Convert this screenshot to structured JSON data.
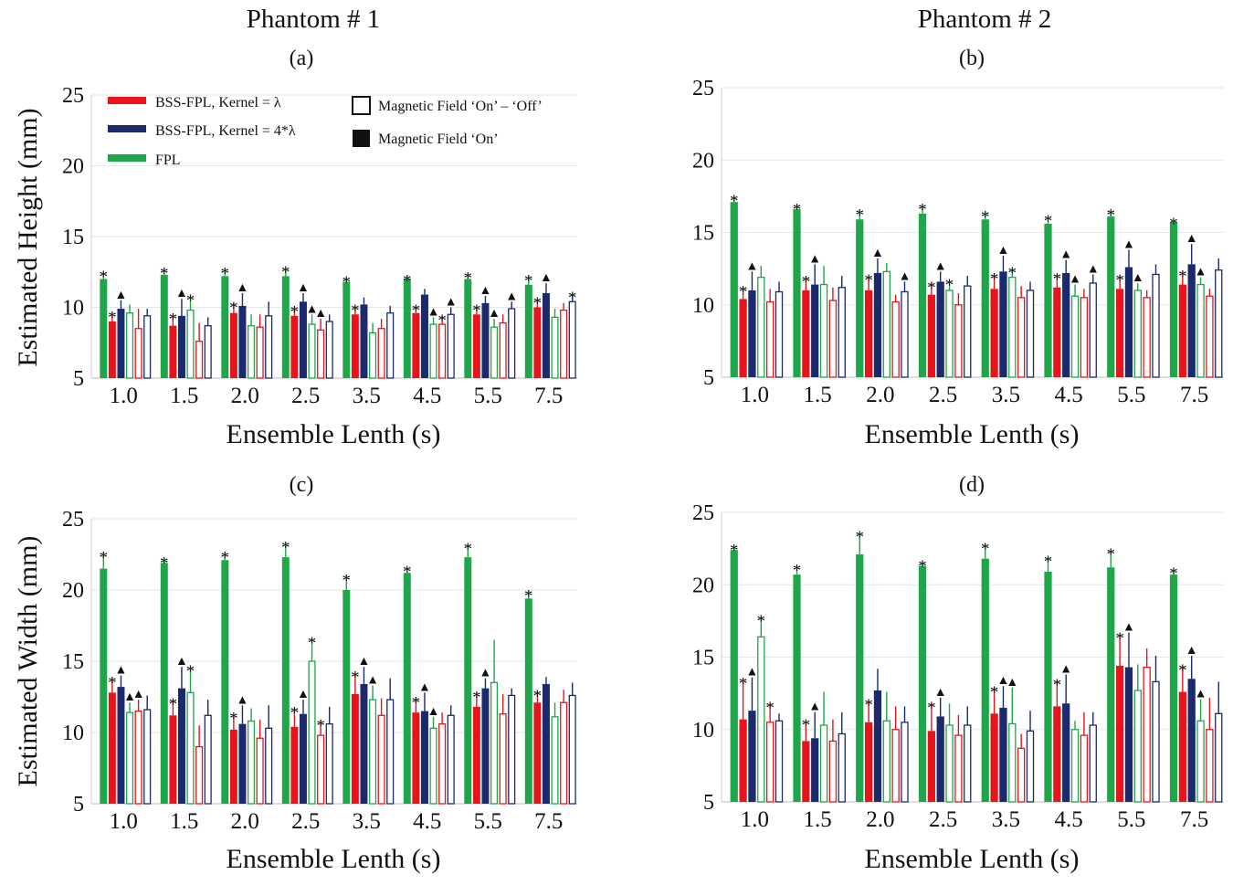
{
  "columns": [
    "Phantom # 1",
    "Phantom # 2"
  ],
  "colors": {
    "BSS-FPL, Kernel = λ": "#e8141c",
    "BSS-FPL, Kernel = 4*λ": "#1a2a6c",
    "FPL": "#1fa64a"
  },
  "legend": {
    "series": [
      "BSS-FPL, Kernel = λ",
      "BSS-FPL, Kernel = 4*λ",
      "FPL"
    ],
    "fields": [
      "Magnetic Field ‘On’ – ‘Off’",
      "Magnetic Field ‘On’"
    ]
  },
  "chart_data": [
    {
      "type": "bar",
      "panel": "(a)",
      "xlabel": "Ensemble Lenth (s)",
      "ylabel": "Estimated Height (mm)",
      "ylim": [
        5,
        25
      ],
      "yticks": [
        5,
        10,
        15,
        20,
        25
      ],
      "categories": [
        "1.0",
        "1.5",
        "2.0",
        "2.5",
        "3.5",
        "4.5",
        "5.5",
        "7.5"
      ],
      "series": [
        {
          "name": "FPL",
          "field": "On",
          "values": [
            12.0,
            12.3,
            12.2,
            12.2,
            11.8,
            12.0,
            12.0,
            11.6
          ],
          "err": [
            0.5,
            0.4,
            0.5,
            0.6,
            0.3,
            0.2,
            0.4,
            0.6
          ]
        },
        {
          "name": "BSS-FPL, Kernel = λ",
          "field": "On",
          "values": [
            9.0,
            8.7,
            9.6,
            9.4,
            9.5,
            9.6,
            9.5,
            10.0
          ],
          "err": [
            0.6,
            0.8,
            0.7,
            0.6,
            0.6,
            0.5,
            0.6,
            0.6
          ]
        },
        {
          "name": "BSS-FPL, Kernel = 4*λ",
          "field": "On",
          "values": [
            9.9,
            9.4,
            10.1,
            10.4,
            10.2,
            10.9,
            10.3,
            11.0
          ],
          "err": [
            0.6,
            1.2,
            0.9,
            0.6,
            0.5,
            0.4,
            0.5,
            0.7
          ]
        },
        {
          "name": "FPL",
          "field": "On – Off",
          "values": [
            9.6,
            9.8,
            8.7,
            8.8,
            8.2,
            8.8,
            8.6,
            9.3
          ],
          "err": [
            0.6,
            1.0,
            0.8,
            0.7,
            0.7,
            0.5,
            0.6,
            0.6
          ]
        },
        {
          "name": "BSS-FPL, Kernel = λ",
          "field": "On – Off",
          "values": [
            8.5,
            7.6,
            8.6,
            8.4,
            8.5,
            8.8,
            8.9,
            9.8
          ],
          "err": [
            1.4,
            1.3,
            0.9,
            0.8,
            0.7,
            0.6,
            0.6,
            0.5
          ]
        },
        {
          "name": "BSS-FPL, Kernel = 4*λ",
          "field": "On – Off",
          "values": [
            9.4,
            8.7,
            9.4,
            9.0,
            9.6,
            9.5,
            9.9,
            10.4
          ],
          "err": [
            0.5,
            0.6,
            1.0,
            0.5,
            0.5,
            0.5,
            0.5,
            0.6
          ]
        }
      ],
      "annotations": [
        {
          "category": "1.0",
          "marks": [
            "*",
            "*",
            "▲",
            "",
            "",
            ""
          ]
        },
        {
          "category": "1.5",
          "marks": [
            "*",
            "*",
            "▲",
            "*",
            "",
            ""
          ]
        },
        {
          "category": "2.0",
          "marks": [
            "*",
            "*",
            "▲",
            "",
            "",
            ""
          ]
        },
        {
          "category": "2.5",
          "marks": [
            "*",
            "*",
            "▲",
            "▲",
            "▲",
            ""
          ]
        },
        {
          "category": "3.5",
          "marks": [
            "*",
            "*",
            "",
            "",
            "",
            ""
          ]
        },
        {
          "category": "4.5",
          "marks": [
            "*",
            "*",
            "",
            "▲",
            "*",
            "▲"
          ]
        },
        {
          "category": "5.5",
          "marks": [
            "*",
            "*",
            "▲",
            "▲",
            "",
            "▲"
          ]
        },
        {
          "category": "7.5",
          "marks": [
            "*",
            "*",
            "▲",
            "",
            "",
            "*"
          ]
        }
      ]
    },
    {
      "type": "bar",
      "panel": "(b)",
      "xlabel": "Ensemble Lenth (s)",
      "ylabel": "",
      "ylim": [
        5,
        25
      ],
      "yticks": [
        5,
        10,
        15,
        20,
        25
      ],
      "categories": [
        "1.0",
        "1.5",
        "2.0",
        "2.5",
        "3.5",
        "4.5",
        "5.5",
        "7.5"
      ],
      "series": [
        {
          "name": "FPL",
          "field": "On",
          "values": [
            17.1,
            16.6,
            15.9,
            16.3,
            15.9,
            15.6,
            16.1,
            15.7
          ],
          "err": [
            0.4,
            0.3,
            0.6,
            0.6,
            0.5,
            0.5,
            0.4,
            0.2
          ]
        },
        {
          "name": "BSS-FPL, Kernel = λ",
          "field": "On",
          "values": [
            10.4,
            11.0,
            11.0,
            10.7,
            11.1,
            11.2,
            11.1,
            11.4
          ],
          "err": [
            0.8,
            0.9,
            1.0,
            0.8,
            1.0,
            0.9,
            0.9,
            0.9
          ]
        },
        {
          "name": "BSS-FPL, Kernel = 4*λ",
          "field": "On",
          "values": [
            11.0,
            11.4,
            12.2,
            11.6,
            12.3,
            12.2,
            12.6,
            12.8
          ],
          "err": [
            1.3,
            1.4,
            1.0,
            0.7,
            1.1,
            0.9,
            1.2,
            1.4
          ]
        },
        {
          "name": "FPL",
          "field": "On – Off",
          "values": [
            11.9,
            11.4,
            12.3,
            11.0,
            11.9,
            10.6,
            11.0,
            11.4
          ],
          "err": [
            0.8,
            1.3,
            0.6,
            0.7,
            0.6,
            0.8,
            0.5,
            0.5
          ]
        },
        {
          "name": "BSS-FPL, Kernel = λ",
          "field": "On – Off",
          "values": [
            10.2,
            10.3,
            10.2,
            10.0,
            10.5,
            10.5,
            10.5,
            10.6
          ],
          "err": [
            0.9,
            0.9,
            0.5,
            0.8,
            0.8,
            0.6,
            0.5,
            0.5
          ]
        },
        {
          "name": "BSS-FPL, Kernel = 4*λ",
          "field": "On – Off",
          "values": [
            10.9,
            11.2,
            10.9,
            11.3,
            11.0,
            11.5,
            12.1,
            12.4
          ],
          "err": [
            0.7,
            0.8,
            0.7,
            0.7,
            0.6,
            0.6,
            0.7,
            0.8
          ]
        }
      ],
      "annotations": [
        {
          "category": "1.0",
          "marks": [
            "*",
            "*",
            "▲",
            "",
            "",
            ""
          ]
        },
        {
          "category": "1.5",
          "marks": [
            "*",
            "*",
            "▲",
            "",
            "",
            ""
          ]
        },
        {
          "category": "2.0",
          "marks": [
            "*",
            "*",
            "▲",
            "",
            "",
            "▲"
          ]
        },
        {
          "category": "2.5",
          "marks": [
            "*",
            "*",
            "▲",
            "*",
            "",
            ""
          ]
        },
        {
          "category": "3.5",
          "marks": [
            "*",
            "*",
            "▲",
            "*",
            "",
            ""
          ]
        },
        {
          "category": "4.5",
          "marks": [
            "*",
            "*",
            "▲",
            "▲",
            "",
            "▲"
          ]
        },
        {
          "category": "5.5",
          "marks": [
            "*",
            "*",
            "▲",
            "▲",
            "",
            ""
          ]
        },
        {
          "category": "7.5",
          "marks": [
            "*",
            "*",
            "▲",
            "▲",
            "",
            ""
          ]
        }
      ]
    },
    {
      "type": "bar",
      "panel": "(c)",
      "xlabel": "Ensemble Lenth (s)",
      "ylabel": "Estimated Width (mm)",
      "ylim": [
        5,
        25
      ],
      "yticks": [
        5,
        10,
        15,
        20,
        25
      ],
      "categories": [
        "1.0",
        "1.5",
        "2.0",
        "2.5",
        "3.5",
        "4.5",
        "5.5",
        "7.5"
      ],
      "series": [
        {
          "name": "FPL",
          "field": "On",
          "values": [
            21.5,
            21.9,
            22.1,
            22.3,
            20.0,
            21.2,
            22.3,
            19.4
          ],
          "err": [
            1.1,
            0.3,
            0.5,
            1.0,
            1.0,
            0.4,
            0.9,
            0.5
          ]
        },
        {
          "name": "BSS-FPL, Kernel = λ",
          "field": "On",
          "values": [
            12.8,
            11.2,
            10.2,
            10.4,
            12.7,
            11.4,
            11.8,
            12.1
          ],
          "err": [
            1.0,
            1.1,
            1.1,
            1.3,
            1.5,
            1.0,
            1.0,
            0.8
          ]
        },
        {
          "name": "BSS-FPL, Kernel = 4*λ",
          "field": "On",
          "values": [
            13.2,
            13.1,
            10.6,
            11.3,
            13.4,
            11.5,
            13.1,
            13.4
          ],
          "err": [
            0.8,
            1.5,
            1.3,
            1.0,
            1.2,
            1.3,
            0.7,
            0.5
          ]
        },
        {
          "name": "FPL",
          "field": "On – Off",
          "values": [
            11.4,
            12.8,
            10.8,
            15.0,
            12.3,
            10.3,
            13.5,
            11.1
          ],
          "err": [
            0.7,
            1.8,
            0.9,
            1.6,
            1.0,
            0.8,
            3.0,
            1.0
          ]
        },
        {
          "name": "BSS-FPL, Kernel = λ",
          "field": "On – Off",
          "values": [
            11.5,
            9.0,
            9.6,
            9.8,
            11.2,
            10.6,
            11.3,
            12.1
          ],
          "err": [
            0.8,
            1.5,
            1.3,
            1.0,
            1.2,
            0.8,
            1.4,
            0.9
          ]
        },
        {
          "name": "BSS-FPL, Kernel = 4*λ",
          "field": "On – Off",
          "values": [
            11.6,
            11.2,
            10.3,
            10.6,
            12.3,
            11.2,
            12.6,
            12.6
          ],
          "err": [
            1.0,
            1.1,
            1.6,
            1.2,
            1.5,
            0.7,
            0.5,
            0.9
          ]
        }
      ],
      "annotations": [
        {
          "category": "1.0",
          "marks": [
            "*",
            "*",
            "▲",
            "▲",
            "▲",
            ""
          ]
        },
        {
          "category": "1.5",
          "marks": [
            "*",
            "*",
            "▲",
            "*",
            "",
            ""
          ]
        },
        {
          "category": "2.0",
          "marks": [
            "*",
            "*",
            "▲",
            "",
            "",
            ""
          ]
        },
        {
          "category": "2.5",
          "marks": [
            "*",
            "*",
            "▲",
            "*",
            "*",
            ""
          ]
        },
        {
          "category": "3.5",
          "marks": [
            "*",
            "*",
            "▲",
            "▲",
            "",
            ""
          ]
        },
        {
          "category": "4.5",
          "marks": [
            "*",
            "*",
            "▲",
            "▲",
            "",
            ""
          ]
        },
        {
          "category": "5.5",
          "marks": [
            "*",
            "*",
            "▲",
            "",
            "",
            ""
          ]
        },
        {
          "category": "7.5",
          "marks": [
            "*",
            "*",
            "",
            "",
            "",
            ""
          ]
        }
      ]
    },
    {
      "type": "bar",
      "panel": "(d)",
      "xlabel": "Ensemble Lenth (s)",
      "ylabel": "",
      "ylim": [
        5,
        25
      ],
      "yticks": [
        5,
        10,
        15,
        20,
        25
      ],
      "categories": [
        "1.0",
        "1.5",
        "2.0",
        "2.5",
        "3.5",
        "4.5",
        "5.5",
        "7.5"
      ],
      "series": [
        {
          "name": "FPL",
          "field": "On",
          "values": [
            22.4,
            20.7,
            22.1,
            21.3,
            21.8,
            20.9,
            21.2,
            20.7
          ],
          "err": [
            0.3,
            0.6,
            1.5,
            0.3,
            1.0,
            1.0,
            1.2,
            0.4
          ]
        },
        {
          "name": "BSS-FPL, Kernel = λ",
          "field": "On",
          "values": [
            10.7,
            9.2,
            10.5,
            9.9,
            11.1,
            11.6,
            14.4,
            12.6
          ],
          "err": [
            2.8,
            1.4,
            1.5,
            1.9,
            1.8,
            1.8,
            2.2,
            1.8
          ]
        },
        {
          "name": "BSS-FPL, Kernel = 4*λ",
          "field": "On",
          "values": [
            11.3,
            9.4,
            12.7,
            10.9,
            11.5,
            11.8,
            14.3,
            13.5
          ],
          "err": [
            2.3,
            1.8,
            1.5,
            1.3,
            1.5,
            2.0,
            2.4,
            1.6
          ]
        },
        {
          "name": "FPL",
          "field": "On – Off",
          "values": [
            16.4,
            10.3,
            10.6,
            10.3,
            10.4,
            10.0,
            12.7,
            10.6
          ],
          "err": [
            1.4,
            2.3,
            2.0,
            1.5,
            2.5,
            0.6,
            1.8,
            1.5
          ]
        },
        {
          "name": "BSS-FPL, Kernel = λ",
          "field": "On – Off",
          "values": [
            10.5,
            9.2,
            10.0,
            9.6,
            8.7,
            9.6,
            14.3,
            10.0
          ],
          "err": [
            1.3,
            1.5,
            1.6,
            1.4,
            1.0,
            1.6,
            1.3,
            2.2
          ]
        },
        {
          "name": "BSS-FPL, Kernel = 4*λ",
          "field": "On – Off",
          "values": [
            10.6,
            9.7,
            10.5,
            10.3,
            9.9,
            10.3,
            13.3,
            11.1
          ],
          "err": [
            0.5,
            1.5,
            1.1,
            1.3,
            1.4,
            0.9,
            1.8,
            2.2
          ]
        }
      ],
      "annotations": [
        {
          "category": "1.0",
          "marks": [
            "*",
            "*",
            "▲",
            "*",
            "*",
            ""
          ]
        },
        {
          "category": "1.5",
          "marks": [
            "*",
            "*",
            "▲",
            "",
            "",
            ""
          ]
        },
        {
          "category": "2.0",
          "marks": [
            "*",
            "*",
            "",
            "",
            "",
            ""
          ]
        },
        {
          "category": "2.5",
          "marks": [
            "*",
            "*",
            "▲",
            "",
            "",
            ""
          ]
        },
        {
          "category": "3.5",
          "marks": [
            "*",
            "*",
            "▲",
            "▲",
            "",
            ""
          ]
        },
        {
          "category": "4.5",
          "marks": [
            "*",
            "*",
            "▲",
            "",
            "",
            ""
          ]
        },
        {
          "category": "5.5",
          "marks": [
            "*",
            "*",
            "▲",
            "",
            "",
            ""
          ]
        },
        {
          "category": "7.5",
          "marks": [
            "*",
            "*",
            "▲",
            "▲",
            "",
            ""
          ]
        }
      ]
    }
  ]
}
